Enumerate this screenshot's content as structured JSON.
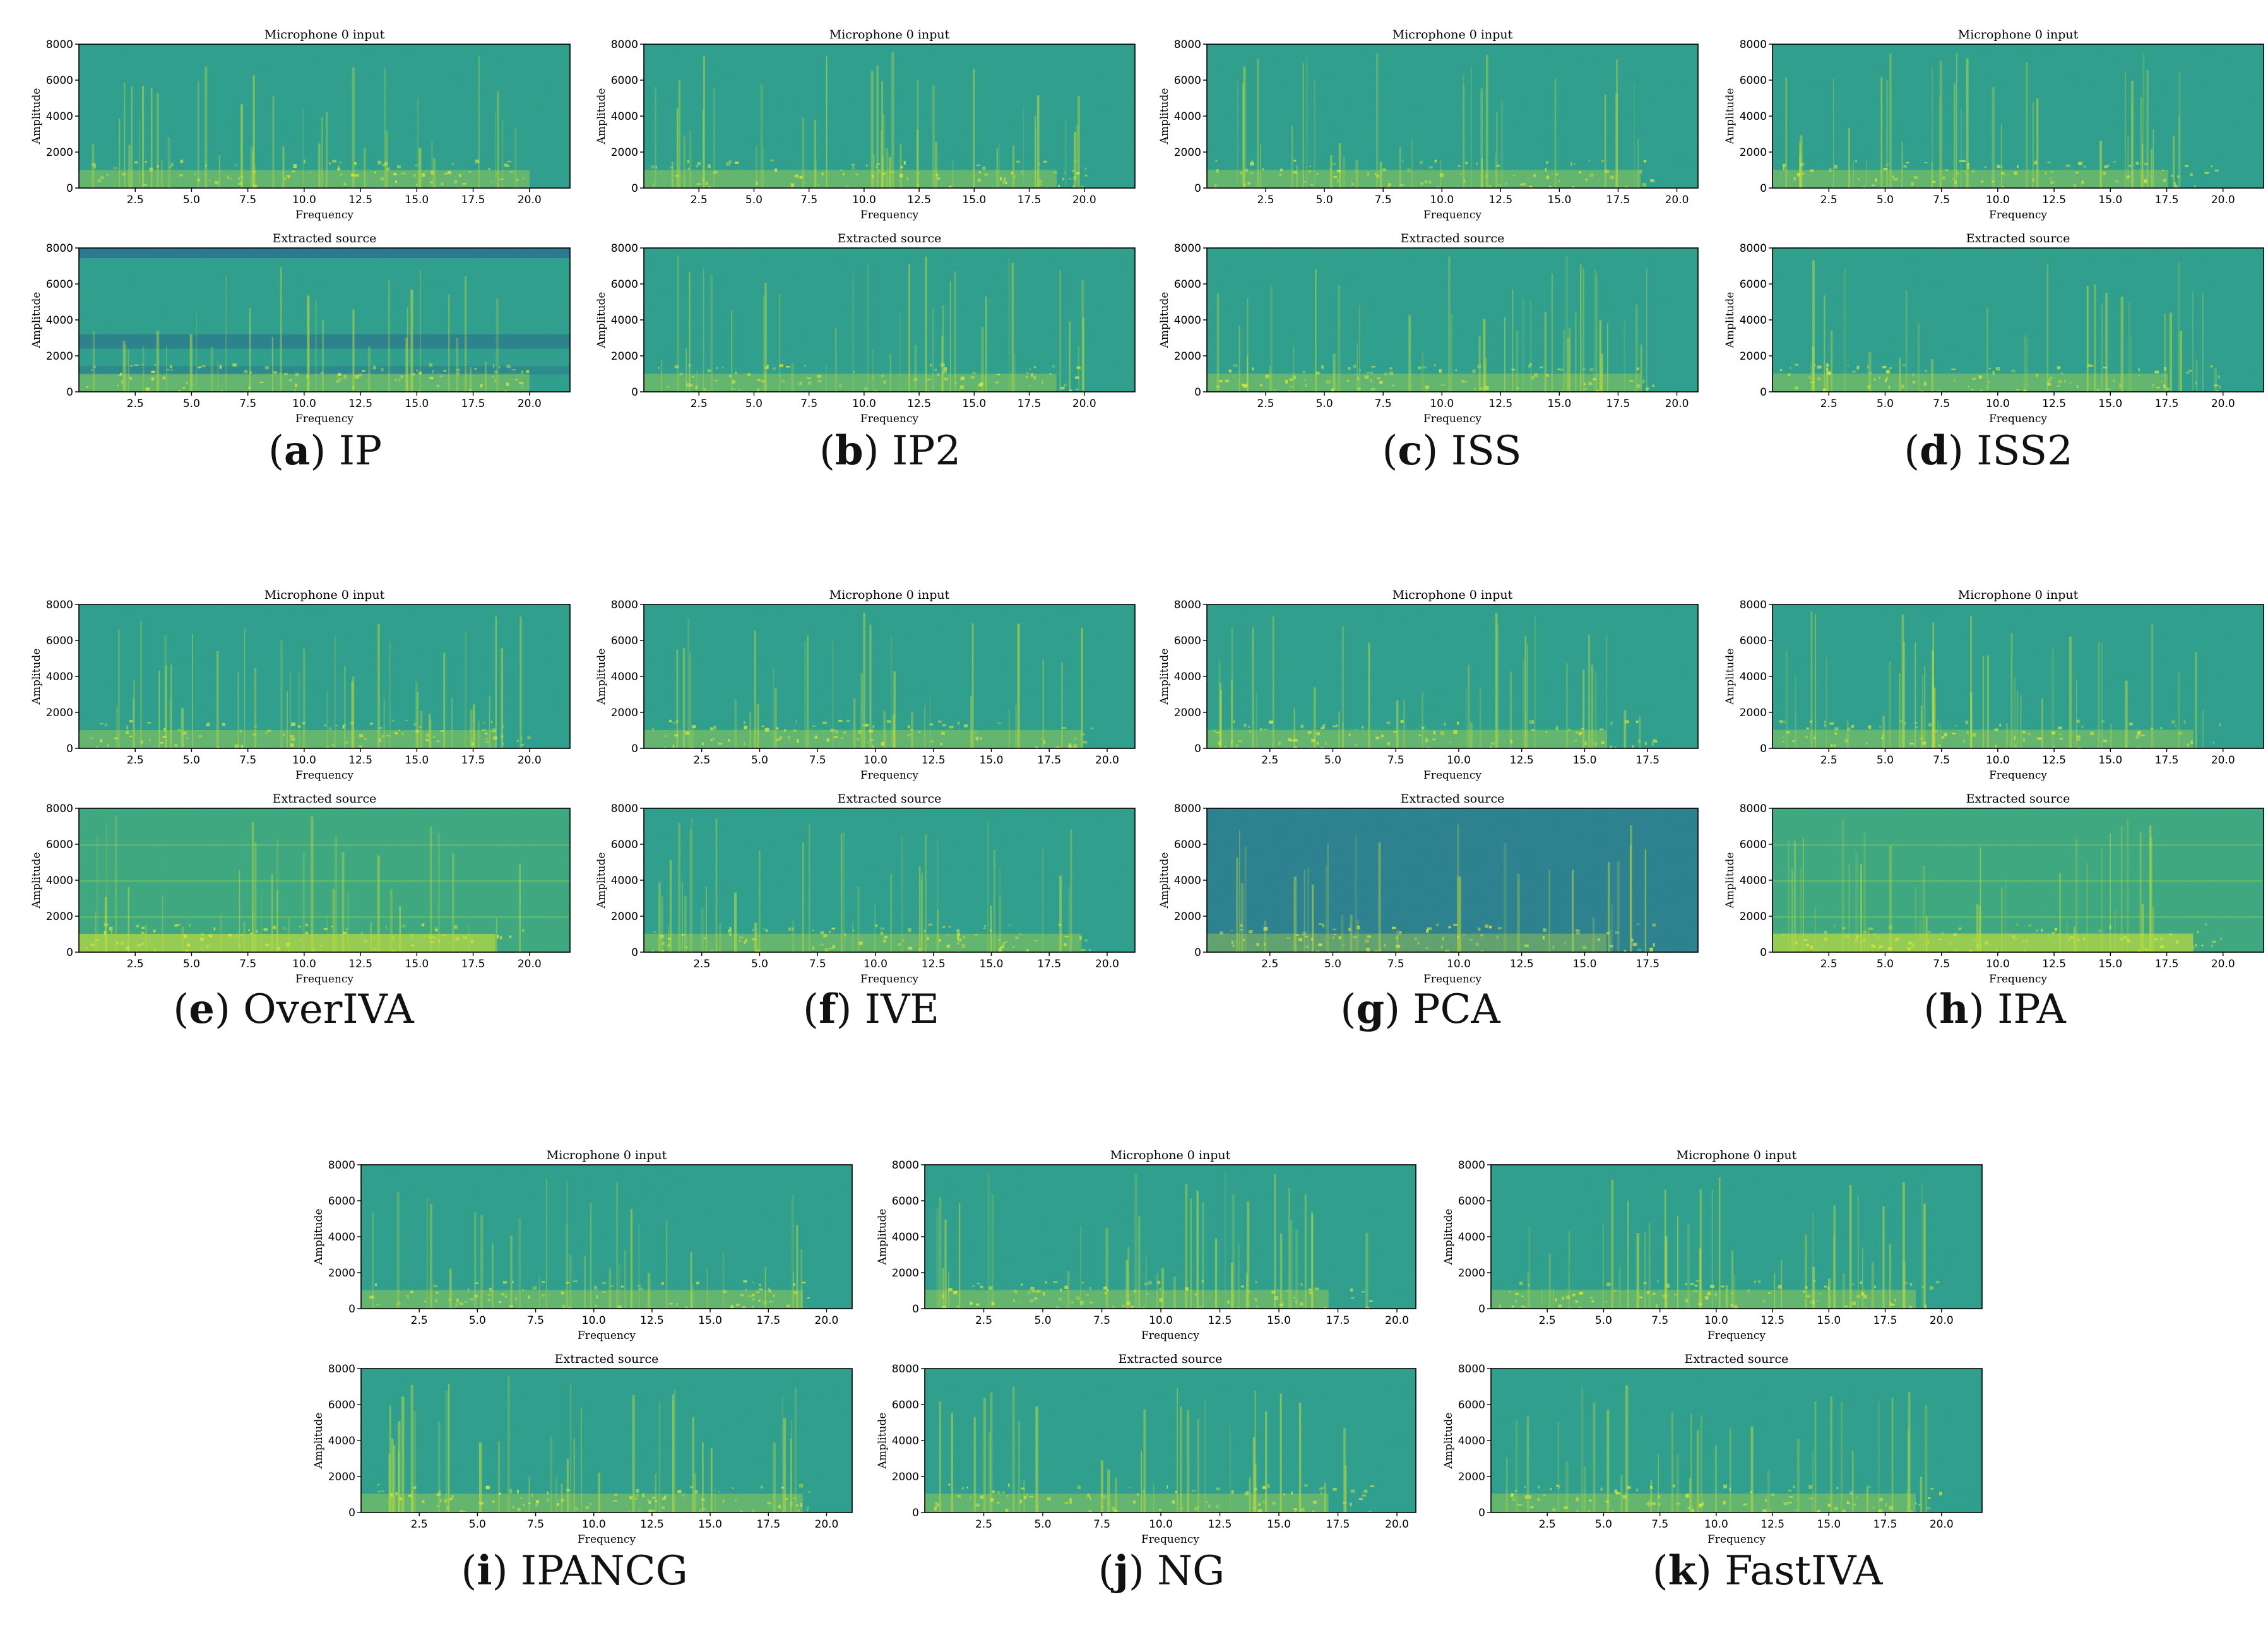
{
  "colors": {
    "spec_base": "#2a9f86",
    "spec_dark": "#2b6f8e",
    "spec_yellow": "#c4df3a",
    "axis": "#000000"
  },
  "chart_data": [
    {
      "type": "heatmap",
      "panel": {
        "letter": "a",
        "method": "IP"
      },
      "subplots": [
        {
          "title": "Microphone 0 input",
          "xlabel": "Frequency",
          "ylabel": "Amplitude",
          "xlim": [
            0,
            21.8
          ],
          "ylim": [
            0,
            8000
          ],
          "xticks": [
            "2.5",
            "5.0",
            "7.5",
            "10.0",
            "12.5",
            "15.0",
            "17.5",
            "20.0"
          ],
          "yticks": [
            "0",
            "2000",
            "4000",
            "6000",
            "8000"
          ]
        },
        {
          "title": "Extracted source",
          "xlabel": "Frequency",
          "ylabel": "Amplitude",
          "xlim": [
            0,
            21.8
          ],
          "ylim": [
            0,
            8000
          ],
          "xticks": [
            "2.5",
            "5.0",
            "7.5",
            "10.0",
            "12.5",
            "15.0",
            "17.5",
            "20.0"
          ],
          "yticks": [
            "0",
            "2000",
            "4000",
            "6000",
            "8000"
          ]
        }
      ]
    },
    {
      "type": "heatmap",
      "panel": {
        "letter": "b",
        "method": "IP2"
      },
      "subplots": [
        {
          "title": "Microphone 0 input",
          "xlabel": "Frequency",
          "ylabel": "Amplitude",
          "xlim": [
            0,
            22.3
          ],
          "ylim": [
            0,
            8000
          ],
          "xticks": [
            "2.5",
            "5.0",
            "7.5",
            "10.0",
            "12.5",
            "15.0",
            "17.5",
            "20.0"
          ],
          "yticks": [
            "0",
            "2000",
            "4000",
            "6000",
            "8000"
          ]
        },
        {
          "title": "Extracted source",
          "xlabel": "Frequency",
          "ylabel": "Amplitude",
          "xlim": [
            0,
            22.3
          ],
          "ylim": [
            0,
            8000
          ],
          "xticks": [
            "2.5",
            "5.0",
            "7.5",
            "10.0",
            "12.5",
            "15.0",
            "17.5",
            "20.0"
          ],
          "yticks": [
            "0",
            "2000",
            "4000",
            "6000",
            "8000"
          ]
        }
      ]
    },
    {
      "type": "heatmap",
      "panel": {
        "letter": "c",
        "method": "ISS"
      },
      "subplots": [
        {
          "title": "Microphone 0 input",
          "xlabel": "Frequency",
          "ylabel": "Amplitude",
          "xlim": [
            0,
            20.9
          ],
          "ylim": [
            0,
            8000
          ],
          "xticks": [
            "2.5",
            "5.0",
            "7.5",
            "10.0",
            "12.5",
            "15.0",
            "17.5",
            "20.0"
          ],
          "yticks": [
            "0",
            "2000",
            "4000",
            "6000",
            "8000"
          ]
        },
        {
          "title": "Extracted source",
          "xlabel": "Frequency",
          "ylabel": "Amplitude",
          "xlim": [
            0,
            20.9
          ],
          "ylim": [
            0,
            8000
          ],
          "xticks": [
            "2.5",
            "5.0",
            "7.5",
            "10.0",
            "12.5",
            "15.0",
            "17.5",
            "20.0"
          ],
          "yticks": [
            "0",
            "2000",
            "4000",
            "6000",
            "8000"
          ]
        }
      ]
    },
    {
      "type": "heatmap",
      "panel": {
        "letter": "d",
        "method": "ISS2"
      },
      "subplots": [
        {
          "title": "Microphone 0 input",
          "xlabel": "Frequency",
          "ylabel": "Amplitude",
          "xlim": [
            0,
            21.8
          ],
          "ylim": [
            0,
            8000
          ],
          "xticks": [
            "2.5",
            "5.0",
            "7.5",
            "10.0",
            "12.5",
            "15.0",
            "17.5",
            "20.0"
          ],
          "yticks": [
            "0",
            "2000",
            "4000",
            "6000",
            "8000"
          ]
        },
        {
          "title": "Extracted source",
          "xlabel": "Frequency",
          "ylabel": "Amplitude",
          "xlim": [
            0,
            21.8
          ],
          "ylim": [
            0,
            8000
          ],
          "xticks": [
            "2.5",
            "5.0",
            "7.5",
            "10.0",
            "12.5",
            "15.0",
            "17.5",
            "20.0"
          ],
          "yticks": [
            "0",
            "2000",
            "4000",
            "6000",
            "8000"
          ]
        }
      ]
    },
    {
      "type": "heatmap",
      "panel": {
        "letter": "e",
        "method": "OverIVA"
      },
      "subplots": [
        {
          "title": "Microphone 0 input",
          "xlabel": "Frequency",
          "ylabel": "Amplitude",
          "xlim": [
            0,
            21.8
          ],
          "ylim": [
            0,
            8000
          ],
          "xticks": [
            "2.5",
            "5.0",
            "7.5",
            "10.0",
            "12.5",
            "15.0",
            "17.5",
            "20.0"
          ],
          "yticks": [
            "0",
            "2000",
            "4000",
            "6000",
            "8000"
          ]
        },
        {
          "title": "Extracted source",
          "xlabel": "Frequency",
          "ylabel": "Amplitude",
          "xlim": [
            0,
            21.8
          ],
          "ylim": [
            0,
            8000
          ],
          "xticks": [
            "2.5",
            "5.0",
            "7.5",
            "10.0",
            "12.5",
            "15.0",
            "17.5",
            "20.0"
          ],
          "yticks": [
            "0",
            "2000",
            "4000",
            "6000",
            "8000"
          ]
        }
      ]
    },
    {
      "type": "heatmap",
      "panel": {
        "letter": "f",
        "method": "IVE"
      },
      "subplots": [
        {
          "title": "Microphone 0 input",
          "xlabel": "Frequency",
          "ylabel": "Amplitude",
          "xlim": [
            0,
            21.2
          ],
          "ylim": [
            0,
            8000
          ],
          "xticks": [
            "2.5",
            "5.0",
            "7.5",
            "10.0",
            "12.5",
            "15.0",
            "17.5",
            "20.0"
          ],
          "yticks": [
            "0",
            "2000",
            "4000",
            "6000",
            "8000"
          ]
        },
        {
          "title": "Extracted source",
          "xlabel": "Frequency",
          "ylabel": "Amplitude",
          "xlim": [
            0,
            21.2
          ],
          "ylim": [
            0,
            8000
          ],
          "xticks": [
            "2.5",
            "5.0",
            "7.5",
            "10.0",
            "12.5",
            "15.0",
            "17.5",
            "20.0"
          ],
          "yticks": [
            "0",
            "2000",
            "4000",
            "6000",
            "8000"
          ]
        }
      ]
    },
    {
      "type": "heatmap",
      "panel": {
        "letter": "g",
        "method": "PCA"
      },
      "subplots": [
        {
          "title": "Microphone 0 input",
          "xlabel": "Frequency",
          "ylabel": "Amplitude",
          "xlim": [
            0,
            19.5
          ],
          "ylim": [
            0,
            8000
          ],
          "xticks": [
            "2.5",
            "5.0",
            "7.5",
            "10.0",
            "12.5",
            "15.0",
            "17.5"
          ],
          "yticks": [
            "0",
            "2000",
            "4000",
            "6000",
            "8000"
          ]
        },
        {
          "title": "Extracted source",
          "xlabel": "Frequency",
          "ylabel": "Amplitude",
          "xlim": [
            0,
            19.5
          ],
          "ylim": [
            0,
            8000
          ],
          "xticks": [
            "2.5",
            "5.0",
            "7.5",
            "10.0",
            "12.5",
            "15.0",
            "17.5"
          ],
          "yticks": [
            "0",
            "2000",
            "4000",
            "6000",
            "8000"
          ]
        }
      ]
    },
    {
      "type": "heatmap",
      "panel": {
        "letter": "h",
        "method": "IPA"
      },
      "subplots": [
        {
          "title": "Microphone 0 input",
          "xlabel": "Frequency",
          "ylabel": "Amplitude",
          "xlim": [
            0,
            21.8
          ],
          "ylim": [
            0,
            8000
          ],
          "xticks": [
            "2.5",
            "5.0",
            "7.5",
            "10.0",
            "12.5",
            "15.0",
            "17.5",
            "20.0"
          ],
          "yticks": [
            "0",
            "2000",
            "4000",
            "6000",
            "8000"
          ]
        },
        {
          "title": "Extracted source",
          "xlabel": "Frequency",
          "ylabel": "Amplitude",
          "xlim": [
            0,
            21.8
          ],
          "ylim": [
            0,
            8000
          ],
          "xticks": [
            "2.5",
            "5.0",
            "7.5",
            "10.0",
            "12.5",
            "15.0",
            "17.5",
            "20.0"
          ],
          "yticks": [
            "0",
            "2000",
            "4000",
            "6000",
            "8000"
          ]
        }
      ]
    },
    {
      "type": "heatmap",
      "panel": {
        "letter": "i",
        "method": "IPANCG"
      },
      "subplots": [
        {
          "title": "Microphone 0 input",
          "xlabel": "Frequency",
          "ylabel": "Amplitude",
          "xlim": [
            0,
            21.1
          ],
          "ylim": [
            0,
            8000
          ],
          "xticks": [
            "2.5",
            "5.0",
            "7.5",
            "10.0",
            "12.5",
            "15.0",
            "17.5",
            "20.0"
          ],
          "yticks": [
            "0",
            "2000",
            "4000",
            "6000",
            "8000"
          ]
        },
        {
          "title": "Extracted source",
          "xlabel": "Frequency",
          "ylabel": "Amplitude",
          "xlim": [
            0,
            21.1
          ],
          "ylim": [
            0,
            8000
          ],
          "xticks": [
            "2.5",
            "5.0",
            "7.5",
            "10.0",
            "12.5",
            "15.0",
            "17.5",
            "20.0"
          ],
          "yticks": [
            "0",
            "2000",
            "4000",
            "6000",
            "8000"
          ]
        }
      ]
    },
    {
      "type": "heatmap",
      "panel": {
        "letter": "j",
        "method": "NG"
      },
      "subplots": [
        {
          "title": "Microphone 0 input",
          "xlabel": "Frequency",
          "ylabel": "Amplitude",
          "xlim": [
            0,
            20.8
          ],
          "ylim": [
            0,
            8000
          ],
          "xticks": [
            "2.5",
            "5.0",
            "7.5",
            "10.0",
            "12.5",
            "15.0",
            "17.5",
            "20.0"
          ],
          "yticks": [
            "0",
            "2000",
            "4000",
            "6000",
            "8000"
          ]
        },
        {
          "title": "Extracted source",
          "xlabel": "Frequency",
          "ylabel": "Amplitude",
          "xlim": [
            0,
            20.8
          ],
          "ylim": [
            0,
            8000
          ],
          "xticks": [
            "2.5",
            "5.0",
            "7.5",
            "10.0",
            "12.5",
            "15.0",
            "17.5",
            "20.0"
          ],
          "yticks": [
            "0",
            "2000",
            "4000",
            "6000",
            "8000"
          ]
        }
      ]
    },
    {
      "type": "heatmap",
      "panel": {
        "letter": "k",
        "method": "FastIVA"
      },
      "subplots": [
        {
          "title": "Microphone 0 input",
          "xlabel": "Frequency",
          "ylabel": "Amplitude",
          "xlim": [
            0,
            21.8
          ],
          "ylim": [
            0,
            8000
          ],
          "xticks": [
            "2.5",
            "5.0",
            "7.5",
            "10.0",
            "12.5",
            "15.0",
            "17.5",
            "20.0"
          ],
          "yticks": [
            "0",
            "2000",
            "4000",
            "6000",
            "8000"
          ]
        },
        {
          "title": "Extracted source",
          "xlabel": "Frequency",
          "ylabel": "Amplitude",
          "xlim": [
            0,
            21.8
          ],
          "ylim": [
            0,
            8000
          ],
          "xticks": [
            "2.5",
            "5.0",
            "7.5",
            "10.0",
            "12.5",
            "15.0",
            "17.5",
            "20.0"
          ],
          "yticks": [
            "0",
            "2000",
            "4000",
            "6000",
            "8000"
          ]
        }
      ]
    }
  ]
}
